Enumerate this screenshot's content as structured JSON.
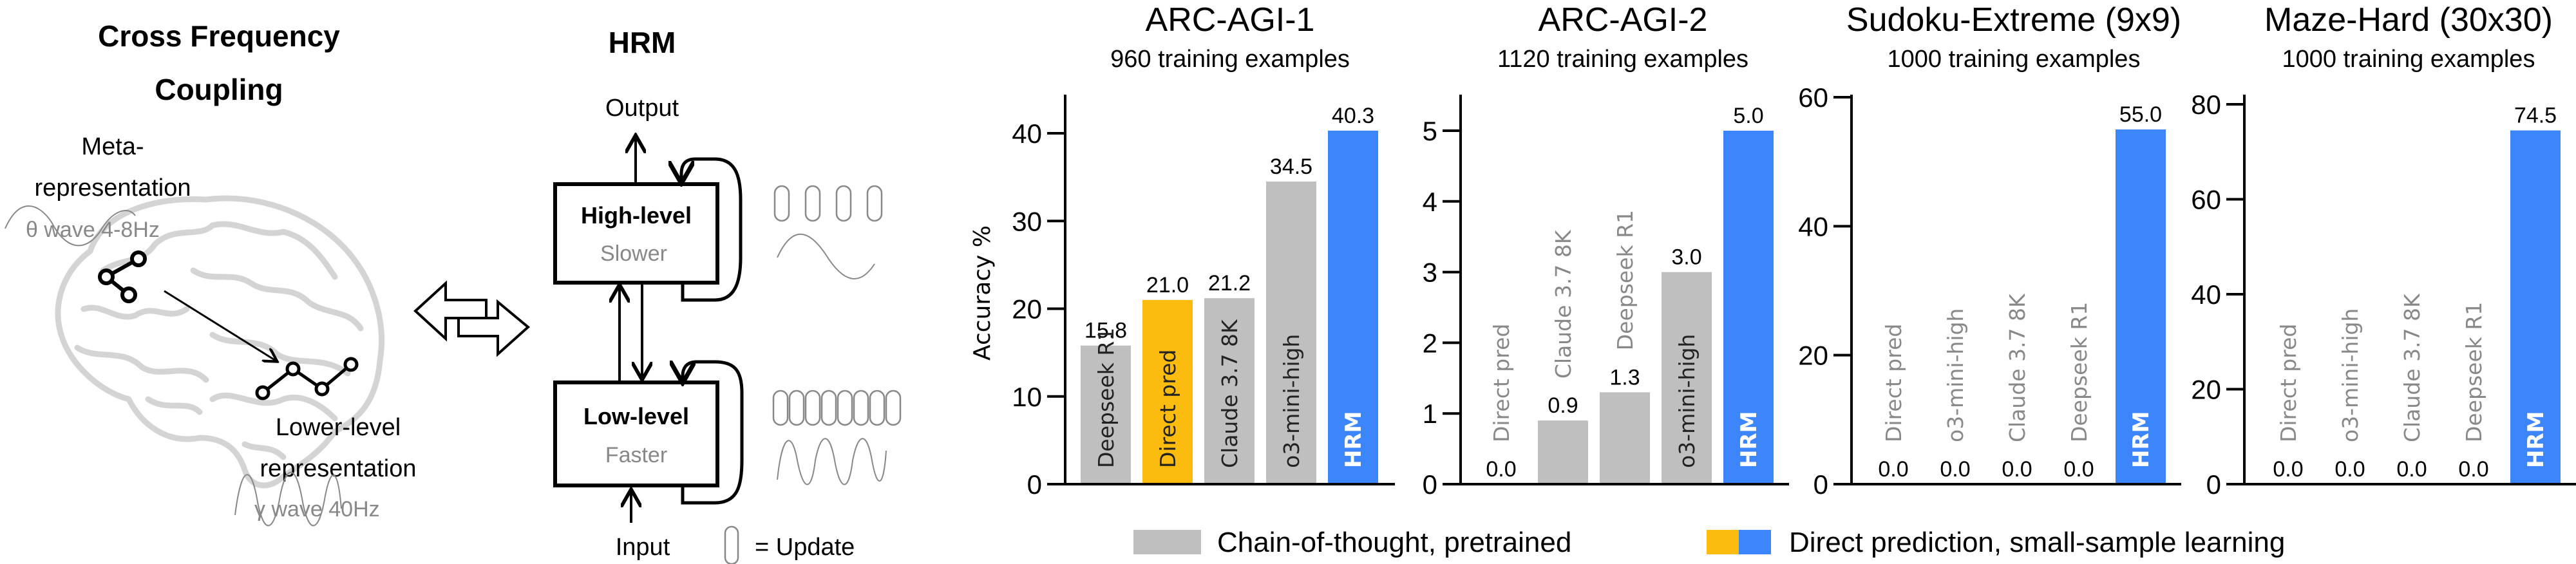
{
  "diagram": {
    "cfc_title_line1": "Cross Frequency",
    "cfc_title_line2": "Coupling",
    "meta_line1": "Meta-",
    "meta_line2": "representation",
    "theta_label": "θ wave 4-8Hz",
    "lower_line1": "Lower-level",
    "lower_line2": "representation",
    "gamma_label": "γ wave 40Hz",
    "hrm_title": "HRM",
    "output_label": "Output",
    "input_label": "Input",
    "high_level": "High-level",
    "high_speed": "Slower",
    "low_level": "Low-level",
    "low_speed": "Faster",
    "update_legend": "= Update",
    "high_updates": 4,
    "low_updates": 8
  },
  "colors": {
    "cot": "#bfbfbf",
    "direct_pred": "#fbbc0f",
    "hrm": "#3d85fb",
    "brain": "#d4d4d4"
  },
  "legend": {
    "cot_label": "Chain-of-thought, pretrained",
    "direct_label": "Direct prediction, small-sample learning"
  },
  "chart_data": [
    {
      "type": "bar",
      "title": "ARC-AGI-1",
      "subtitle": "960 training examples",
      "ylabel": "Accuracy %",
      "ylim": [
        0,
        44
      ],
      "yticks": [
        0,
        10,
        20,
        30,
        40
      ],
      "categories": [
        "Deepseek R1",
        "Direct pred",
        "Claude 3.7 8K",
        "o3-mini-high",
        "HRM"
      ],
      "values": [
        15.8,
        21.0,
        21.2,
        34.5,
        40.3
      ],
      "value_labels": [
        "15.8",
        "21.0",
        "21.2",
        "34.5",
        "40.3"
      ],
      "groups": [
        "cot",
        "direct_pred",
        "cot",
        "cot",
        "hrm"
      ]
    },
    {
      "type": "bar",
      "title": "ARC-AGI-2",
      "subtitle": "1120 training examples",
      "ylabel": "",
      "ylim": [
        0,
        5.5
      ],
      "yticks": [
        0,
        1,
        2,
        3,
        4,
        5
      ],
      "categories": [
        "Direct pred",
        "Claude 3.7 8K",
        "Deepseek R1",
        "o3-mini-high",
        "HRM"
      ],
      "values": [
        0.0,
        0.9,
        1.3,
        3.0,
        5.0
      ],
      "value_labels": [
        "0.0",
        "0.9",
        "1.3",
        "3.0",
        "5.0"
      ],
      "groups": [
        "direct_pred",
        "cot",
        "cot",
        "cot",
        "hrm"
      ]
    },
    {
      "type": "bar",
      "title": "Sudoku-Extreme (9x9)",
      "subtitle": "1000 training examples",
      "ylabel": "",
      "ylim": [
        0,
        60
      ],
      "yticks": [
        0,
        20,
        40,
        60
      ],
      "categories": [
        "Direct pred",
        "o3-mini-high",
        "Claude 3.7 8K",
        "Deepseek R1",
        "HRM"
      ],
      "values": [
        0.0,
        0.0,
        0.0,
        0.0,
        55.0
      ],
      "value_labels": [
        "0.0",
        "0.0",
        "0.0",
        "0.0",
        "55.0"
      ],
      "groups": [
        "direct_pred",
        "cot",
        "cot",
        "cot",
        "hrm"
      ]
    },
    {
      "type": "bar",
      "title": "Maze-Hard (30x30)",
      "subtitle": "1000 training examples",
      "ylabel": "",
      "ylim": [
        0,
        81
      ],
      "yticks": [
        0,
        20,
        40,
        60,
        80
      ],
      "categories": [
        "Direct pred",
        "o3-mini-high",
        "Claude 3.7 8K",
        "Deepseek R1",
        "HRM"
      ],
      "values": [
        0.0,
        0.0,
        0.0,
        0.0,
        74.5
      ],
      "value_labels": [
        "0.0",
        "0.0",
        "0.0",
        "0.0",
        "74.5"
      ],
      "groups": [
        "direct_pred",
        "cot",
        "cot",
        "cot",
        "hrm"
      ]
    }
  ]
}
